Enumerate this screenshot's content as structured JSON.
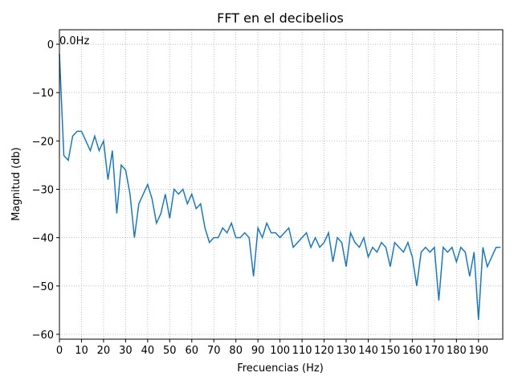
{
  "chart_data": {
    "type": "line",
    "title": "FFT en el decibelios",
    "xlabel": "Frecuencias (Hz)",
    "ylabel": "Magnitud (db)",
    "x": [
      0,
      2,
      4,
      6,
      8,
      10,
      12,
      14,
      16,
      18,
      20,
      22,
      24,
      26,
      28,
      30,
      32,
      34,
      36,
      38,
      40,
      42,
      44,
      46,
      48,
      50,
      52,
      54,
      56,
      58,
      60,
      62,
      64,
      66,
      68,
      70,
      72,
      74,
      76,
      78,
      80,
      82,
      84,
      86,
      88,
      90,
      92,
      94,
      96,
      98,
      100,
      102,
      104,
      106,
      108,
      110,
      112,
      114,
      116,
      118,
      120,
      122,
      124,
      126,
      128,
      130,
      132,
      134,
      136,
      138,
      140,
      142,
      144,
      146,
      148,
      150,
      152,
      154,
      156,
      158,
      160,
      162,
      164,
      166,
      168,
      170,
      172,
      174,
      176,
      178,
      180,
      182,
      184,
      186,
      188,
      190,
      192,
      194,
      196,
      198,
      200
    ],
    "series": [
      {
        "name": "FFT",
        "color": "#1f77b4",
        "values": [
          -2,
          -23,
          -24,
          -19,
          -18,
          -18,
          -20,
          -22,
          -19,
          -22,
          -20,
          -28,
          -22,
          -35,
          -25,
          -26,
          -31,
          -40,
          -33,
          -31,
          -29,
          -32,
          -37,
          -35,
          -31,
          -36,
          -30,
          -31,
          -30,
          -33,
          -31,
          -34,
          -33,
          -38,
          -41,
          -40,
          -40,
          -38,
          -39,
          -37,
          -40,
          -40,
          -39,
          -40,
          -48,
          -38,
          -40,
          -37,
          -39,
          -39,
          -40,
          -39,
          -38,
          -42,
          -41,
          -40,
          -39,
          -42,
          -40,
          -42,
          -41,
          -39,
          -45,
          -40,
          -41,
          -46,
          -39,
          -41,
          -42,
          -40,
          -44,
          -42,
          -43,
          -41,
          -42,
          -46,
          -41,
          -42,
          -43,
          -41,
          -44,
          -50,
          -43,
          -42,
          -43,
          -42,
          -53,
          -42,
          -43,
          -42,
          -45,
          -42,
          -43,
          -48,
          -43,
          -57,
          -42,
          -46,
          -44,
          -42,
          -42
        ]
      }
    ],
    "annotations": [
      {
        "text": "0.0Hz",
        "x": 0,
        "y": 0
      }
    ],
    "xlim": [
      0,
      201
    ],
    "ylim": [
      -61,
      3
    ],
    "xticks": [
      0,
      10,
      20,
      30,
      40,
      50,
      60,
      70,
      80,
      90,
      100,
      110,
      120,
      130,
      140,
      150,
      160,
      170,
      180,
      190
    ],
    "yticks": [
      {
        "value": -60,
        "label": "−60"
      },
      {
        "value": -50,
        "label": "−50"
      },
      {
        "value": -40,
        "label": "−40"
      },
      {
        "value": -30,
        "label": "−30"
      },
      {
        "value": -20,
        "label": "−20"
      },
      {
        "value": -10,
        "label": "−10"
      },
      0
    ],
    "grid": true
  }
}
